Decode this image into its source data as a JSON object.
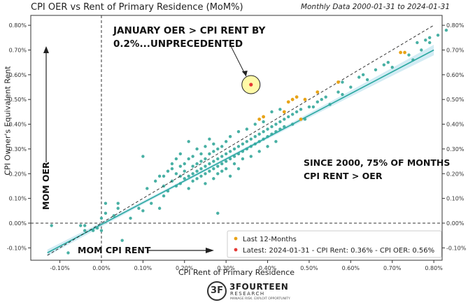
{
  "header": {
    "title": "CPI OER vs Rent of Primary Residence (MoM%)",
    "subtitle": "Monthly Data 2000-01-31 to 2024-01-31"
  },
  "brand": {
    "mark": "3F",
    "name": "3FOURTEEN",
    "sub": "RESEARCH",
    "tagline": "MANAGE RISK. EXPLOIT OPPORTUNITY"
  },
  "colors": {
    "scatter": "#48b0a4",
    "recent": "#e8a317",
    "latest": "#e53935",
    "fit": "#2ba8a0",
    "band": "#bfe4ef",
    "identity": "#222222"
  },
  "chart_data": {
    "type": "scatter",
    "title": "CPI OER vs Rent of Primary Residence (MoM%)",
    "xlabel": "CPI Rent of Primary Residence",
    "ylabel": "CPI Owner's Equivalent Rent",
    "xlim": [
      -0.0017,
      0.0082
    ],
    "ylim": [
      -0.0015,
      0.0084
    ],
    "x_ticks": [
      -0.001,
      0,
      0.001,
      0.002,
      0.003,
      0.004,
      0.005,
      0.006,
      0.007,
      0.008
    ],
    "x_tick_labels": [
      "-0.10%",
      "0.00%",
      "0.10%",
      "0.20%",
      "0.30%",
      "0.40%",
      "0.50%",
      "0.60%",
      "0.70%",
      "0.80%"
    ],
    "y_ticks": [
      -0.001,
      0,
      0.001,
      0.002,
      0.003,
      0.004,
      0.005,
      0.006,
      0.007,
      0.008
    ],
    "y_tick_labels": [
      "-0.10%",
      "0.00%",
      "0.10%",
      "0.20%",
      "0.30%",
      "0.40%",
      "0.50%",
      "0.60%",
      "0.70%",
      "0.80%"
    ],
    "grid": false,
    "legend_position": "bottom-right",
    "fit_line": {
      "x": [
        -0.0013,
        0.008
      ],
      "y": [
        -0.0012,
        0.007
      ]
    },
    "identity_line": {
      "x": [
        -0.0013,
        0.008
      ],
      "y": [
        -0.0013,
        0.008
      ]
    },
    "reference_lines": {
      "x": 0,
      "y": 0
    },
    "annotations": {
      "jan": "JANUARY OER  >  CPI RENT BY\n0.2%...UNPRECEDENTED",
      "since": "SINCE 2000, 75% OF MONTHS\nCPI RENT  >  OER",
      "mom_oer": "MOM OER",
      "mom_cpi": "MOM CPI RENT"
    },
    "series": [
      {
        "name": "Last 12-Months",
        "points": [
          [
            0.0038,
            0.0042
          ],
          [
            0.0039,
            0.0043
          ],
          [
            0.0044,
            0.0045
          ],
          [
            0.0045,
            0.0049
          ],
          [
            0.0046,
            0.005
          ],
          [
            0.0047,
            0.0051
          ],
          [
            0.0048,
            0.0042
          ],
          [
            0.0049,
            0.005
          ],
          [
            0.0052,
            0.0053
          ],
          [
            0.0057,
            0.0057
          ],
          [
            0.0072,
            0.0069
          ],
          [
            0.0073,
            0.0069
          ]
        ]
      },
      {
        "name": "Latest: 2024-01-31 - CPI Rent: 0.36% - CPI OER: 0.56%",
        "points": [
          [
            0.0036,
            0.0056
          ]
        ]
      },
      {
        "name": "history",
        "points": [
          [
            -0.0012,
            -0.0001
          ],
          [
            -0.0008,
            -0.0012
          ],
          [
            -0.0005,
            -0.0001
          ],
          [
            -0.0004,
            -0.0001
          ],
          [
            -0.0004,
            -0.0003
          ],
          [
            -0.0002,
            -0.0003
          ],
          [
            -0.0001,
            -0.0002
          ],
          [
            0.0,
            0.0002
          ],
          [
            0.0,
            -0.0003
          ],
          [
            0.0001,
            0.0008
          ],
          [
            0.0001,
            0.0004
          ],
          [
            0.0003,
            0.0003
          ],
          [
            0.0004,
            0.0006
          ],
          [
            0.0004,
            0.0008
          ],
          [
            0.0005,
            -0.0007
          ],
          [
            0.0007,
            0.0002
          ],
          [
            0.0009,
            0.0006
          ],
          [
            0.001,
            0.0005
          ],
          [
            0.001,
            0.0027
          ],
          [
            0.0011,
            0.0014
          ],
          [
            0.0012,
            0.0008
          ],
          [
            0.0013,
            0.0017
          ],
          [
            0.0014,
            0.0019
          ],
          [
            0.0014,
            0.0006
          ],
          [
            0.0015,
            0.0011
          ],
          [
            0.0015,
            0.0015
          ],
          [
            0.0015,
            0.0019
          ],
          [
            0.0016,
            0.0021
          ],
          [
            0.0016,
            0.0013
          ],
          [
            0.0017,
            0.0024
          ],
          [
            0.0017,
            0.0017
          ],
          [
            0.0017,
            0.0022
          ],
          [
            0.0018,
            0.002
          ],
          [
            0.0018,
            0.0015
          ],
          [
            0.0018,
            0.0026
          ],
          [
            0.0019,
            0.0023
          ],
          [
            0.0019,
            0.0019
          ],
          [
            0.0019,
            0.0016
          ],
          [
            0.0019,
            0.0028
          ],
          [
            0.002,
            0.0024
          ],
          [
            0.002,
            0.0021
          ],
          [
            0.002,
            0.0018
          ],
          [
            0.0021,
            0.0033
          ],
          [
            0.0021,
            0.0026
          ],
          [
            0.0021,
            0.0019
          ],
          [
            0.0021,
            0.0014
          ],
          [
            0.0022,
            0.0023
          ],
          [
            0.0022,
            0.002
          ],
          [
            0.0022,
            0.0027
          ],
          [
            0.0022,
            0.0017
          ],
          [
            0.0023,
            0.0024
          ],
          [
            0.0023,
            0.0021
          ],
          [
            0.0023,
            0.003
          ],
          [
            0.0023,
            0.0018
          ],
          [
            0.0024,
            0.0025
          ],
          [
            0.0024,
            0.0022
          ],
          [
            0.0024,
            0.0028
          ],
          [
            0.0024,
            0.0019
          ],
          [
            0.0025,
            0.0023
          ],
          [
            0.0025,
            0.0026
          ],
          [
            0.0025,
            0.0031
          ],
          [
            0.0025,
            0.002
          ],
          [
            0.0025,
            0.0016
          ],
          [
            0.0026,
            0.0024
          ],
          [
            0.0026,
            0.0028
          ],
          [
            0.0026,
            0.0021
          ],
          [
            0.0026,
            0.0034
          ],
          [
            0.0027,
            0.0025
          ],
          [
            0.0027,
            0.0022
          ],
          [
            0.0027,
            0.0029
          ],
          [
            0.0027,
            0.0018
          ],
          [
            0.0027,
            0.0032
          ],
          [
            0.0028,
            0.0026
          ],
          [
            0.0028,
            0.0023
          ],
          [
            0.0028,
            0.003
          ],
          [
            0.0028,
            0.002
          ],
          [
            0.0028,
            0.0004
          ],
          [
            0.0029,
            0.0027
          ],
          [
            0.0029,
            0.0024
          ],
          [
            0.0029,
            0.0031
          ],
          [
            0.0029,
            0.0021
          ],
          [
            0.003,
            0.0028
          ],
          [
            0.003,
            0.0025
          ],
          [
            0.003,
            0.0033
          ],
          [
            0.003,
            0.0022
          ],
          [
            0.0031,
            0.0029
          ],
          [
            0.0031,
            0.0026
          ],
          [
            0.0031,
            0.0035
          ],
          [
            0.0031,
            0.0019
          ],
          [
            0.0032,
            0.003
          ],
          [
            0.0032,
            0.0027
          ],
          [
            0.0032,
            0.0024
          ],
          [
            0.0033,
            0.0031
          ],
          [
            0.0033,
            0.0028
          ],
          [
            0.0033,
            0.0037
          ],
          [
            0.0033,
            0.0022
          ],
          [
            0.0034,
            0.0032
          ],
          [
            0.0034,
            0.0029
          ],
          [
            0.0034,
            0.0026
          ],
          [
            0.0035,
            0.0033
          ],
          [
            0.0035,
            0.003
          ],
          [
            0.0035,
            0.0038
          ],
          [
            0.0036,
            0.0034
          ],
          [
            0.0036,
            0.0031
          ],
          [
            0.0036,
            0.0027
          ],
          [
            0.0037,
            0.0035
          ],
          [
            0.0037,
            0.0032
          ],
          [
            0.0037,
            0.004
          ],
          [
            0.0038,
            0.0036
          ],
          [
            0.0038,
            0.0033
          ],
          [
            0.0038,
            0.0029
          ],
          [
            0.0039,
            0.0037
          ],
          [
            0.0039,
            0.0034
          ],
          [
            0.0039,
            0.0041
          ],
          [
            0.004,
            0.0038
          ],
          [
            0.004,
            0.0035
          ],
          [
            0.004,
            0.0031
          ],
          [
            0.0041,
            0.0039
          ],
          [
            0.0041,
            0.0036
          ],
          [
            0.0041,
            0.0045
          ],
          [
            0.0042,
            0.004
          ],
          [
            0.0042,
            0.0037
          ],
          [
            0.0042,
            0.0033
          ],
          [
            0.0043,
            0.0041
          ],
          [
            0.0043,
            0.0038
          ],
          [
            0.0043,
            0.0046
          ],
          [
            0.0044,
            0.0042
          ],
          [
            0.0044,
            0.0039
          ],
          [
            0.0045,
            0.0043
          ],
          [
            0.0046,
            0.0044
          ],
          [
            0.0046,
            0.004
          ],
          [
            0.0047,
            0.0045
          ],
          [
            0.0048,
            0.0046
          ],
          [
            0.0049,
            0.0042
          ],
          [
            0.005,
            0.0047
          ],
          [
            0.0052,
            0.0049
          ],
          [
            0.0054,
            0.0051
          ],
          [
            0.0055,
            0.0048
          ],
          [
            0.0058,
            0.0057
          ],
          [
            0.0058,
            0.0052
          ],
          [
            0.006,
            0.0055
          ],
          [
            0.0063,
            0.006
          ],
          [
            0.0066,
            0.0062
          ],
          [
            0.0068,
            0.0064
          ],
          [
            0.0069,
            0.0065
          ],
          [
            0.007,
            0.0063
          ],
          [
            0.0074,
            0.0068
          ],
          [
            0.0076,
            0.0073
          ],
          [
            0.0077,
            0.007
          ],
          [
            0.0078,
            0.0074
          ],
          [
            0.0079,
            0.0075
          ],
          [
            0.0081,
            0.0076
          ],
          [
            0.0083,
            0.0078
          ],
          [
            0.0079,
            0.0073
          ],
          [
            0.0075,
            0.0066
          ],
          [
            0.0064,
            0.0058
          ],
          [
            0.0062,
            0.0059
          ],
          [
            0.0057,
            0.0053
          ],
          [
            0.0053,
            0.005
          ],
          [
            0.0051,
            0.0047
          ]
        ]
      }
    ]
  }
}
